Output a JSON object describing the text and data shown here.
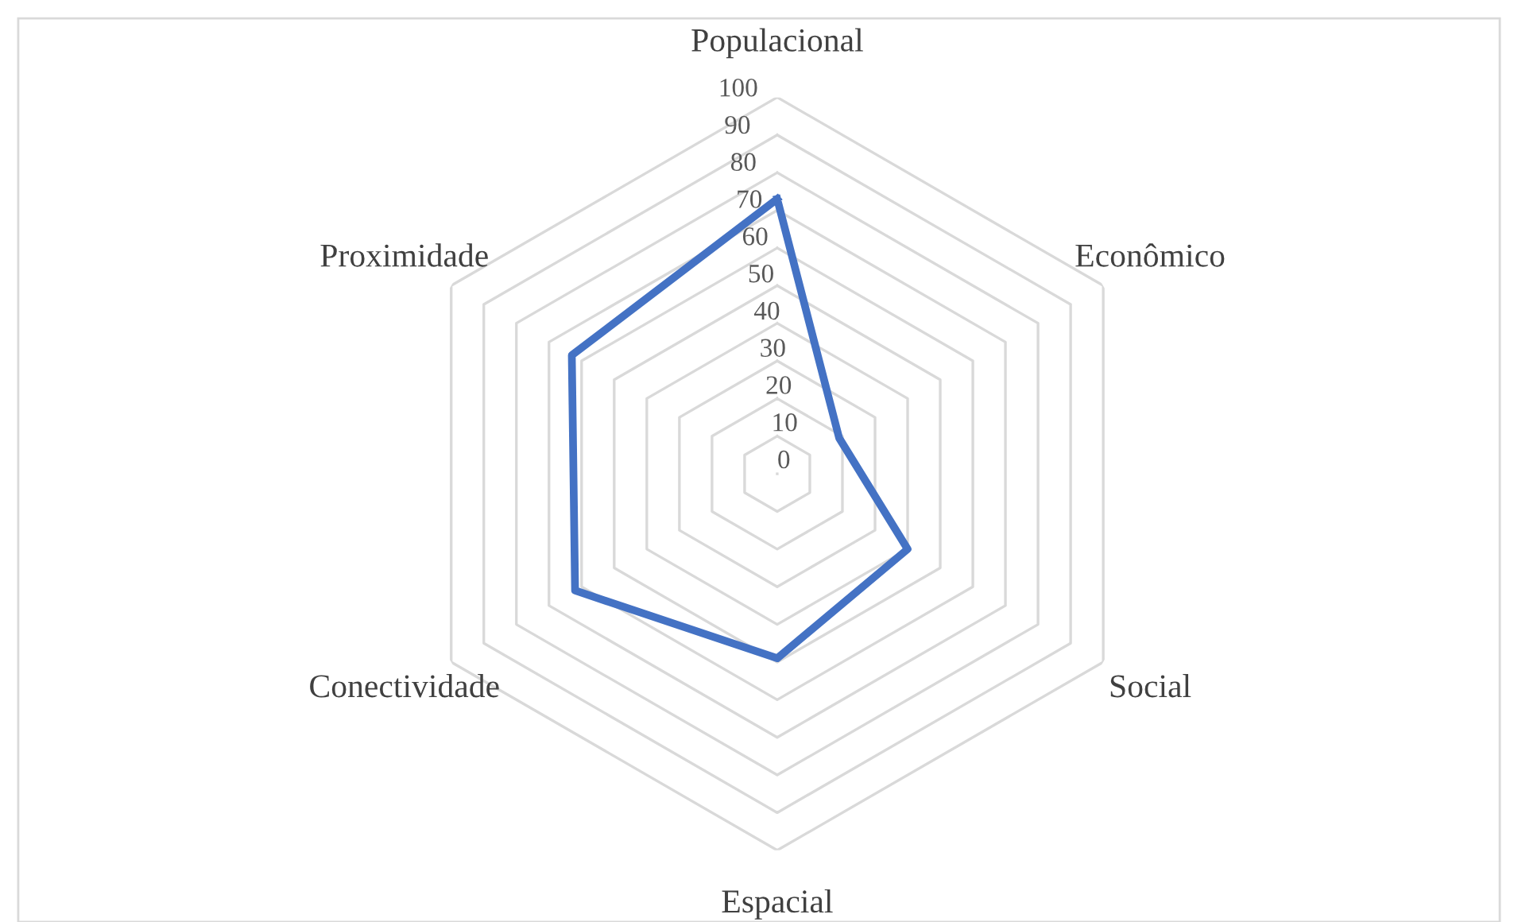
{
  "chart_data": {
    "type": "radar",
    "categories": [
      "Populacional",
      "Econômico",
      "Social",
      "Espacial",
      "Conectividade",
      "Proximidade"
    ],
    "series": [
      {
        "color": "#4472c4",
        "values": [
          73,
          19,
          40,
          49,
          62,
          63
        ]
      }
    ],
    "ylim": [
      0,
      100
    ],
    "yticks": [
      0,
      10,
      20,
      30,
      40,
      50,
      60,
      70,
      80,
      90,
      100
    ],
    "grid": true,
    "marker": "none",
    "line_style": "solid"
  }
}
